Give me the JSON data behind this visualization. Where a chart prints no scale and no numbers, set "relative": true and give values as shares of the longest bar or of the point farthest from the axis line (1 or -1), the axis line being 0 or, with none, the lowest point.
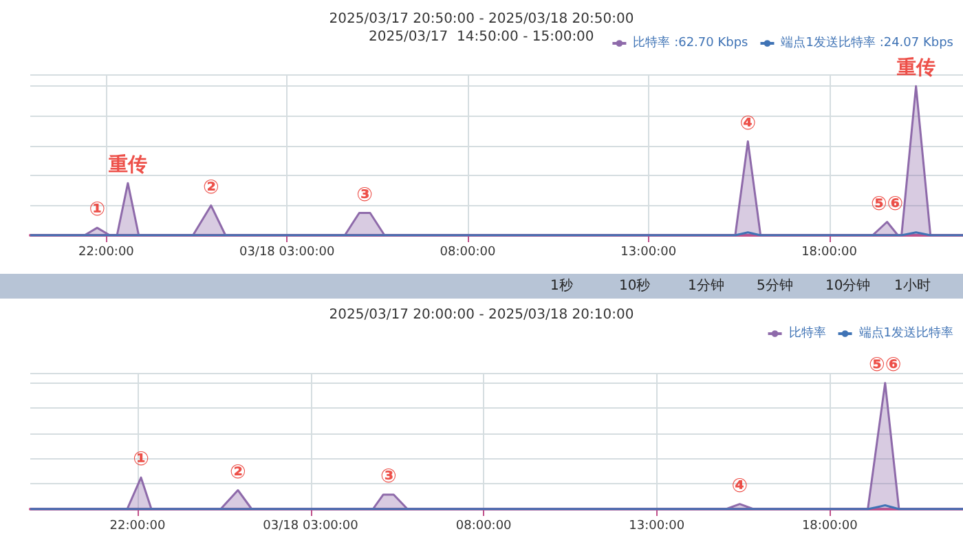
{
  "chart_data": [
    {
      "type": "area",
      "title": "2025/03/17 20:50:00 - 2025/03/18 20:50:00",
      "relative": true,
      "grid": true,
      "legend": "top right",
      "marker": "none",
      "xlim": [
        "2025-03-17T19:54",
        "2025-03-18T21:42"
      ],
      "xticks": [
        {
          "value": "2025-03-17T22:00",
          "label": "22:00:00"
        },
        {
          "value": "2025-03-18T03:00",
          "label": "03/18 03:00:00"
        },
        {
          "value": "2025-03-18T08:00",
          "label": "08:00:00"
        },
        {
          "value": "2025-03-18T13:00",
          "label": "13:00:00"
        },
        {
          "value": "2025-03-18T18:00",
          "label": "18:00:00"
        }
      ],
      "series": [
        {
          "name": "比特率 :62.70 Kbps",
          "color": "#8e6aaa",
          "x": [
            "2025-03-17T19:54",
            "2025-03-17T21:24",
            "2025-03-17T21:45",
            "2025-03-17T22:06",
            "2025-03-17T22:18",
            "2025-03-17T22:36",
            "2025-03-17T22:54",
            "2025-03-18T00:24",
            "2025-03-18T00:54",
            "2025-03-18T01:18",
            "2025-03-18T04:36",
            "2025-03-18T05:00",
            "2025-03-18T05:18",
            "2025-03-18T05:42",
            "2025-03-18T15:24",
            "2025-03-18T15:45",
            "2025-03-18T16:06",
            "2025-03-18T19:12",
            "2025-03-18T19:36",
            "2025-03-18T19:54",
            "2025-03-18T20:00",
            "2025-03-18T20:24",
            "2025-03-18T20:48",
            "2025-03-18T21:42"
          ],
          "values": [
            0,
            0,
            0.05,
            0,
            0,
            0.35,
            0,
            0,
            0.2,
            0,
            0,
            0.15,
            0.15,
            0,
            0,
            0.63,
            0,
            0,
            0.09,
            0,
            0,
            1,
            0,
            0
          ]
        },
        {
          "name": "端点1发送比特率 :24.07 Kbps",
          "color": "#3f73b5",
          "type": "line",
          "x": [
            "2025-03-17T19:54",
            "2025-03-18T15:24",
            "2025-03-18T15:45",
            "2025-03-18T16:06",
            "2025-03-18T20:00",
            "2025-03-18T20:24",
            "2025-03-18T20:48",
            "2025-03-18T21:42"
          ],
          "values": [
            0,
            0,
            0.02,
            0,
            0,
            0.02,
            0,
            0
          ]
        }
      ],
      "annotations": [
        "2025/03/17  14:50:00 - 15:00:00",
        {
          "text": "①",
          "x": "2025-03-17T21:45",
          "y": 0.05
        },
        {
          "text": "重传",
          "x": "2025-03-17T22:36",
          "y": 0.35
        },
        {
          "text": "②",
          "x": "2025-03-18T00:54",
          "y": 0.2
        },
        {
          "text": "③",
          "x": "2025-03-18T05:09",
          "y": 0.15
        },
        {
          "text": "④",
          "x": "2025-03-18T15:45",
          "y": 0.63
        },
        {
          "text": "⑤⑥",
          "x": "2025-03-18T19:36",
          "y": 0.09
        },
        {
          "text": "重传",
          "x": "2025-03-18T20:24",
          "y": 1
        }
      ]
    },
    {
      "type": "area",
      "title": "2025/03/17 20:00:00 - 2025/03/18 20:10:00",
      "relative": true,
      "grid": true,
      "legend": "top right",
      "marker": "none",
      "xlim": [
        "2025-03-17T18:54",
        "2025-03-18T21:51"
      ],
      "xticks": [
        {
          "value": "2025-03-17T22:00",
          "label": "22:00:00"
        },
        {
          "value": "2025-03-18T03:00",
          "label": "03/18 03:00:00"
        },
        {
          "value": "2025-03-18T08:00",
          "label": "08:00:00"
        },
        {
          "value": "2025-03-18T13:00",
          "label": "13:00:00"
        },
        {
          "value": "2025-03-18T18:00",
          "label": "18:00:00"
        }
      ],
      "series": [
        {
          "name": "比特率",
          "color": "#8e6aaa",
          "x": [
            "2025-03-17T18:54",
            "2025-03-17T21:42",
            "2025-03-17T22:06",
            "2025-03-17T22:24",
            "2025-03-18T00:24",
            "2025-03-18T00:54",
            "2025-03-18T01:18",
            "2025-03-18T04:48",
            "2025-03-18T05:06",
            "2025-03-18T05:24",
            "2025-03-18T05:48",
            "2025-03-18T15:00",
            "2025-03-18T15:24",
            "2025-03-18T15:48",
            "2025-03-18T19:06",
            "2025-03-18T19:36",
            "2025-03-18T20:00",
            "2025-03-18T21:51"
          ],
          "values": [
            0,
            0,
            0.25,
            0,
            0,
            0.15,
            0,
            0,
            0.115,
            0.115,
            0,
            0,
            0.04,
            0,
            0,
            1,
            0,
            0
          ]
        },
        {
          "name": "端点1发送比特率",
          "color": "#3f73b5",
          "type": "line",
          "x": [
            "2025-03-17T18:54",
            "2025-03-18T19:06",
            "2025-03-18T19:36",
            "2025-03-18T20:00",
            "2025-03-18T21:51"
          ],
          "values": [
            0,
            0,
            0.03,
            0,
            0
          ]
        }
      ],
      "annotations": [
        "1秒",
        "10秒",
        "1分钟",
        "5分钟",
        "10分钟",
        "1小时",
        {
          "text": "①",
          "x": "2025-03-17T22:06",
          "y": 0.25
        },
        {
          "text": "②",
          "x": "2025-03-18T00:54",
          "y": 0.15
        },
        {
          "text": "③",
          "x": "2025-03-18T05:15",
          "y": 0.115
        },
        {
          "text": "④",
          "x": "2025-03-18T15:24",
          "y": 0.04
        },
        {
          "text": "⑤⑥",
          "x": "2025-03-18T19:36",
          "y": 1
        }
      ]
    }
  ]
}
